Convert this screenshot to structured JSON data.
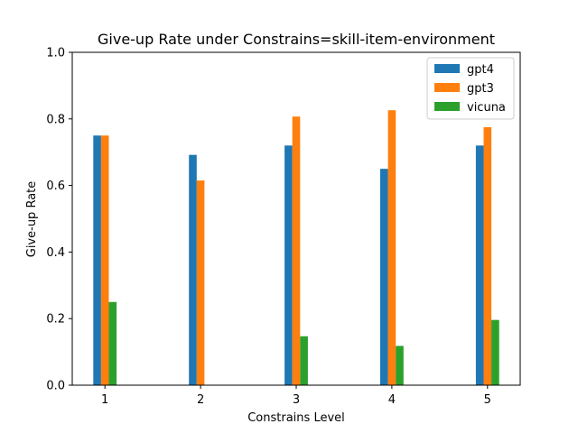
{
  "chart_data": {
    "type": "bar",
    "title": "Give-up Rate under Constrains=skill-item-environment",
    "xlabel": "Constrains Level",
    "ylabel": "Give-up Rate",
    "categories": [
      "1",
      "2",
      "3",
      "4",
      "5"
    ],
    "ylim": [
      0,
      1.0
    ],
    "yticks": [
      "0.0",
      "0.2",
      "0.4",
      "0.6",
      "0.8",
      "1.0"
    ],
    "legend_position": "top-right",
    "grid": false,
    "series": [
      {
        "name": "gpt4",
        "color": "#1f77b4",
        "values": [
          0.75,
          0.692,
          0.72,
          0.65,
          0.72
        ]
      },
      {
        "name": "gpt3",
        "color": "#ff7f0e",
        "values": [
          0.75,
          0.615,
          0.807,
          0.826,
          0.775
        ]
      },
      {
        "name": "vicuna",
        "color": "#2ca02c",
        "values": [
          0.25,
          0.0,
          0.147,
          0.118,
          0.196
        ]
      }
    ]
  }
}
